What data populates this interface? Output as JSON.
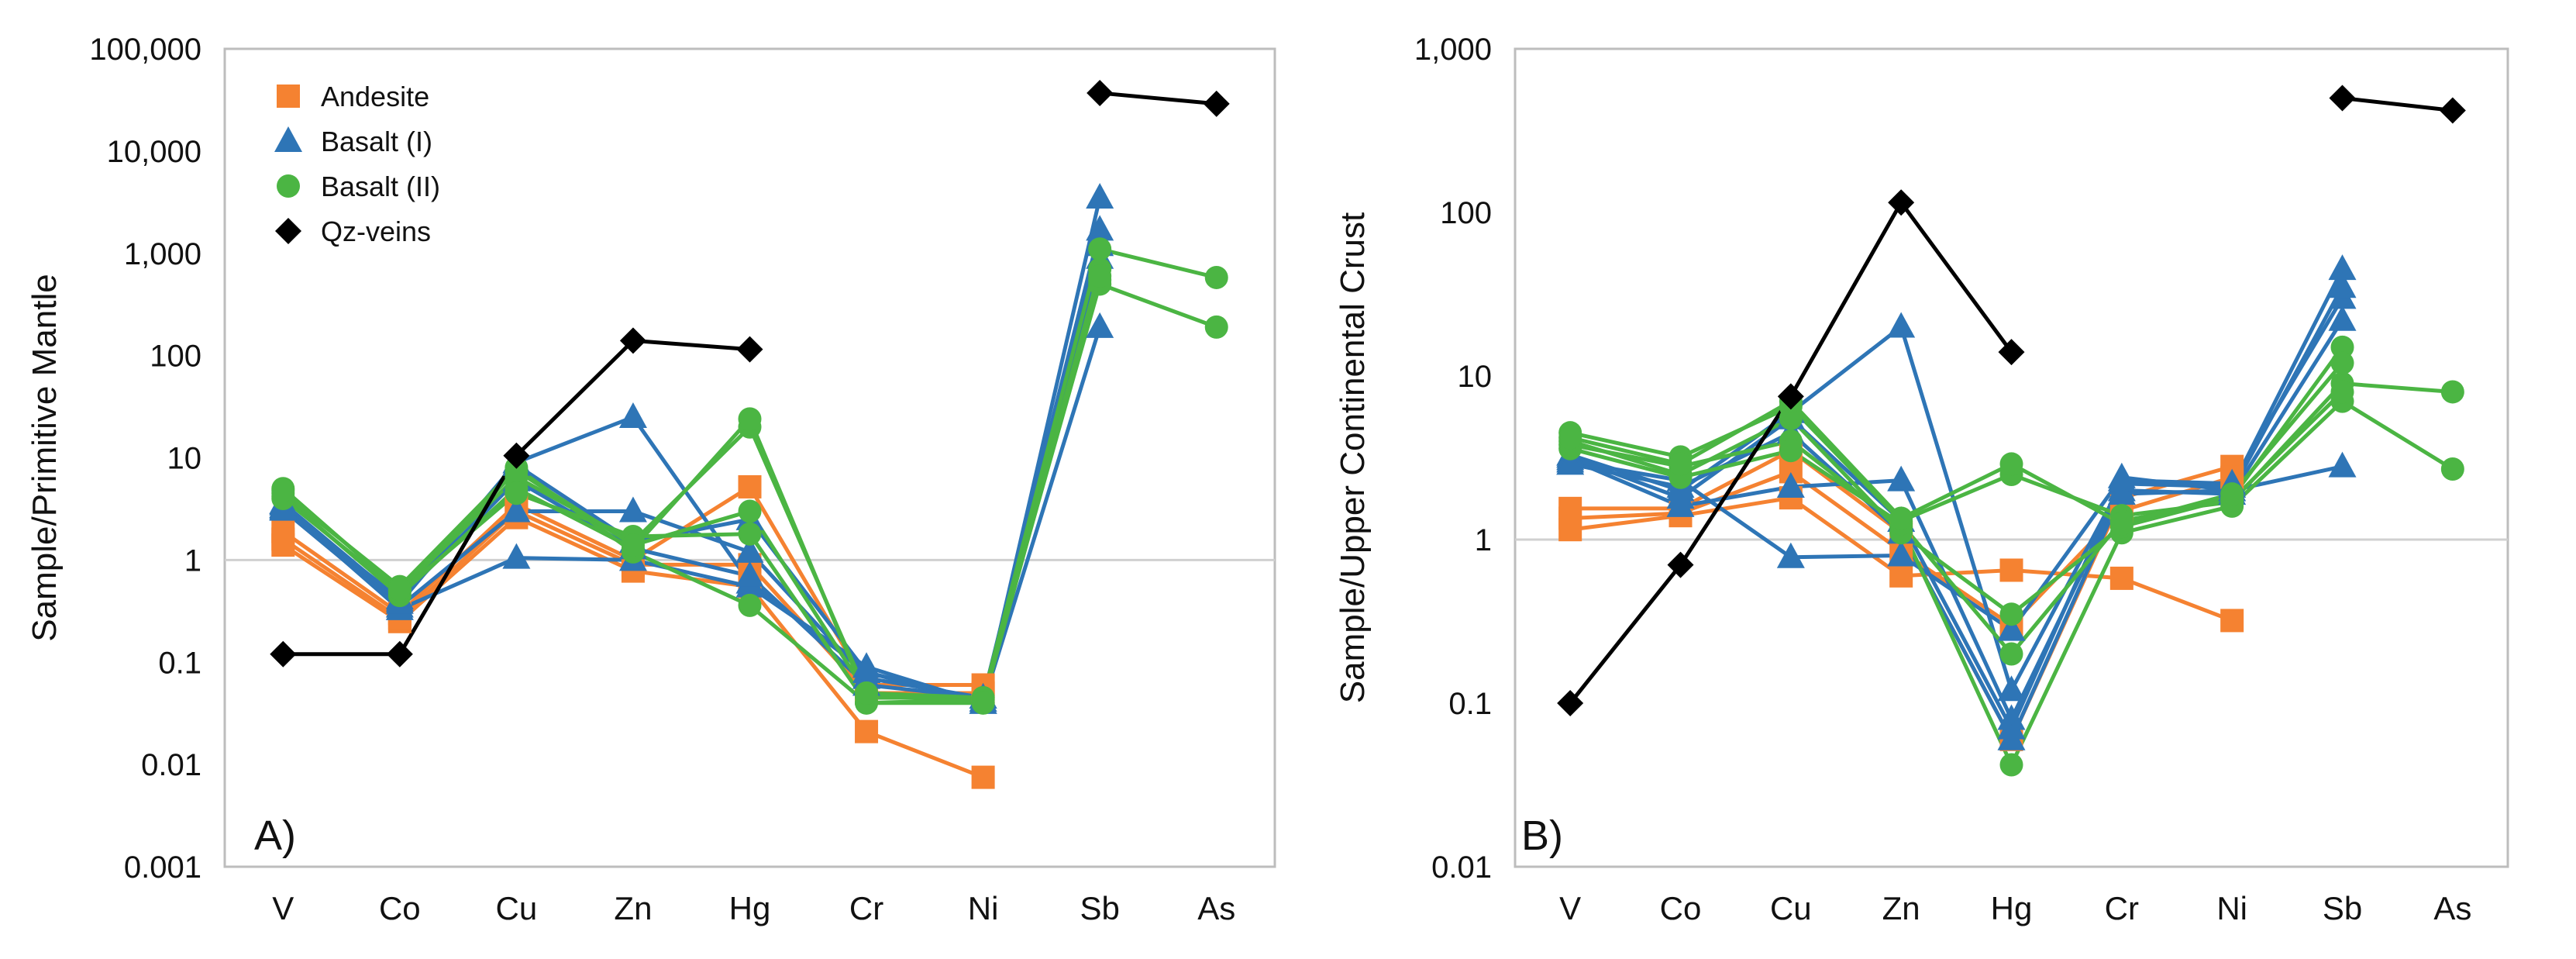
{
  "chart_data": [
    {
      "type": "line",
      "panel_label": "A)",
      "ylabel": "Sample/Primitive Mantle",
      "y_scale": "log",
      "ylim": [
        0.001,
        100000
      ],
      "y_ticks": [
        0.001,
        0.01,
        0.1,
        1,
        10,
        100,
        1000,
        10000,
        100000
      ],
      "y_tick_labels": [
        "0.001",
        "0.01",
        "0.1",
        "1",
        "10",
        "100",
        "1,000",
        "10,000",
        "100,000"
      ],
      "categories": [
        "V",
        "Co",
        "Cu",
        "Zn",
        "Hg",
        "Cr",
        "Ni",
        "Sb",
        "As"
      ],
      "reference_line": 1,
      "legend": {
        "placement": "top-left",
        "entries": [
          {
            "name": "Andesite",
            "color": "#F58231",
            "marker": "square"
          },
          {
            "name": "Basalt (I)",
            "color": "#2E75B6",
            "marker": "triangle"
          },
          {
            "name": "Basalt (II)",
            "color": "#4BB543",
            "marker": "circle"
          },
          {
            "name": "Qz-veins",
            "color": "#000000",
            "marker": "diamond"
          }
        ]
      },
      "series": [
        {
          "group": 0,
          "values": [
            1.4,
            0.25,
            2.6,
            0.78,
            0.55,
            0.021,
            0.0075,
            null,
            null
          ]
        },
        {
          "group": 0,
          "values": [
            1.9,
            0.3,
            3.5,
            1.0,
            5.2,
            0.06,
            0.06,
            null,
            null
          ]
        },
        {
          "group": 0,
          "values": [
            1.6,
            0.27,
            3.0,
            0.9,
            0.9,
            0.05,
            0.05,
            null,
            null
          ]
        },
        {
          "group": 1,
          "values": [
            3.3,
            0.33,
            1.05,
            1.0,
            0.55,
            0.09,
            0.04,
            3500,
            null
          ]
        },
        {
          "group": 1,
          "values": [
            3.6,
            0.4,
            9.0,
            25,
            0.6,
            0.08,
            0.04,
            190,
            null
          ]
        },
        {
          "group": 1,
          "values": [
            3.1,
            0.35,
            3.0,
            3.0,
            1.2,
            0.07,
            0.045,
            1700,
            null
          ]
        },
        {
          "group": 1,
          "values": [
            3.5,
            0.38,
            8.5,
            1.5,
            2.5,
            0.08,
            0.042,
            900,
            null
          ]
        },
        {
          "group": 1,
          "values": [
            3.2,
            0.42,
            6.0,
            1.3,
            0.7,
            0.06,
            0.045,
            1200,
            null
          ]
        },
        {
          "group": 2,
          "values": [
            5.0,
            0.5,
            6.5,
            1.5,
            20,
            0.05,
            0.045,
            1100,
            580
          ]
        },
        {
          "group": 2,
          "values": [
            4.2,
            0.45,
            5.0,
            1.3,
            24,
            0.045,
            0.045,
            500,
            190
          ]
        },
        {
          "group": 2,
          "values": [
            4.5,
            0.55,
            8.0,
            1.2,
            0.36,
            0.04,
            0.04,
            700,
            null
          ]
        },
        {
          "group": 2,
          "values": [
            4.0,
            0.48,
            4.5,
            1.7,
            1.8,
            0.04,
            0.043,
            550,
            null
          ]
        },
        {
          "group": 2,
          "values": [
            4.8,
            0.52,
            7.5,
            1.4,
            3.0,
            0.05,
            0.04,
            600,
            null
          ]
        },
        {
          "group": 3,
          "values": [
            0.12,
            0.12,
            10.5,
            140,
            115,
            null,
            null,
            37000,
            29000
          ]
        }
      ]
    },
    {
      "type": "line",
      "panel_label": "B)",
      "ylabel": "Sample/Upper Continental Crust",
      "y_scale": "log",
      "ylim": [
        0.01,
        1000
      ],
      "y_ticks": [
        0.01,
        0.1,
        1,
        10,
        100,
        1000
      ],
      "y_tick_labels": [
        "0.01",
        "0.1",
        "1",
        "10",
        "100",
        "1,000"
      ],
      "categories": [
        "V",
        "Co",
        "Cu",
        "Zn",
        "Hg",
        "Cr",
        "Ni",
        "Sb",
        "As"
      ],
      "reference_line": 1,
      "series": [
        {
          "group": 0,
          "values": [
            1.15,
            1.4,
            1.8,
            0.6,
            0.65,
            0.58,
            0.32,
            null,
            null
          ]
        },
        {
          "group": 0,
          "values": [
            1.55,
            1.55,
            3.5,
            1.1,
            0.06,
            1.8,
            2.8,
            null,
            null
          ]
        },
        {
          "group": 0,
          "values": [
            1.35,
            1.45,
            2.6,
            0.85,
            0.3,
            1.5,
            2.4,
            null,
            null
          ]
        },
        {
          "group": 1,
          "values": [
            3.0,
            2.3,
            0.78,
            0.8,
            0.28,
            2.4,
            2.0,
            2.8,
            null
          ]
        },
        {
          "group": 1,
          "values": [
            3.3,
            2.0,
            6.0,
            20,
            0.12,
            2.2,
            2.1,
            45,
            null
          ]
        },
        {
          "group": 1,
          "values": [
            3.1,
            1.6,
            2.1,
            2.3,
            0.08,
            2.0,
            1.9,
            22,
            null
          ]
        },
        {
          "group": 1,
          "values": [
            3.2,
            1.8,
            5.5,
            1.3,
            0.07,
            2.3,
            2.2,
            30,
            null
          ]
        },
        {
          "group": 1,
          "values": [
            2.9,
            2.1,
            4.5,
            1.1,
            0.06,
            1.9,
            2.0,
            35,
            null
          ]
        },
        {
          "group": 2,
          "values": [
            4.5,
            3.2,
            6.5,
            1.3,
            2.5,
            1.4,
            1.7,
            9.0,
            8.0
          ]
        },
        {
          "group": 2,
          "values": [
            3.8,
            2.8,
            4.0,
            1.2,
            0.042,
            1.1,
            1.6,
            7.0,
            2.7
          ]
        },
        {
          "group": 2,
          "values": [
            4.0,
            2.5,
            5.5,
            1.1,
            0.35,
            1.2,
            1.8,
            15,
            null
          ]
        },
        {
          "group": 2,
          "values": [
            3.6,
            2.4,
            3.5,
            1.25,
            0.2,
            1.3,
            1.75,
            8.0,
            null
          ]
        },
        {
          "group": 2,
          "values": [
            4.2,
            2.9,
            7.0,
            1.35,
            2.9,
            1.25,
            1.9,
            12,
            null
          ]
        },
        {
          "group": 3,
          "values": [
            0.1,
            0.7,
            7.5,
            115,
            14,
            null,
            null,
            500,
            420
          ]
        }
      ]
    }
  ]
}
